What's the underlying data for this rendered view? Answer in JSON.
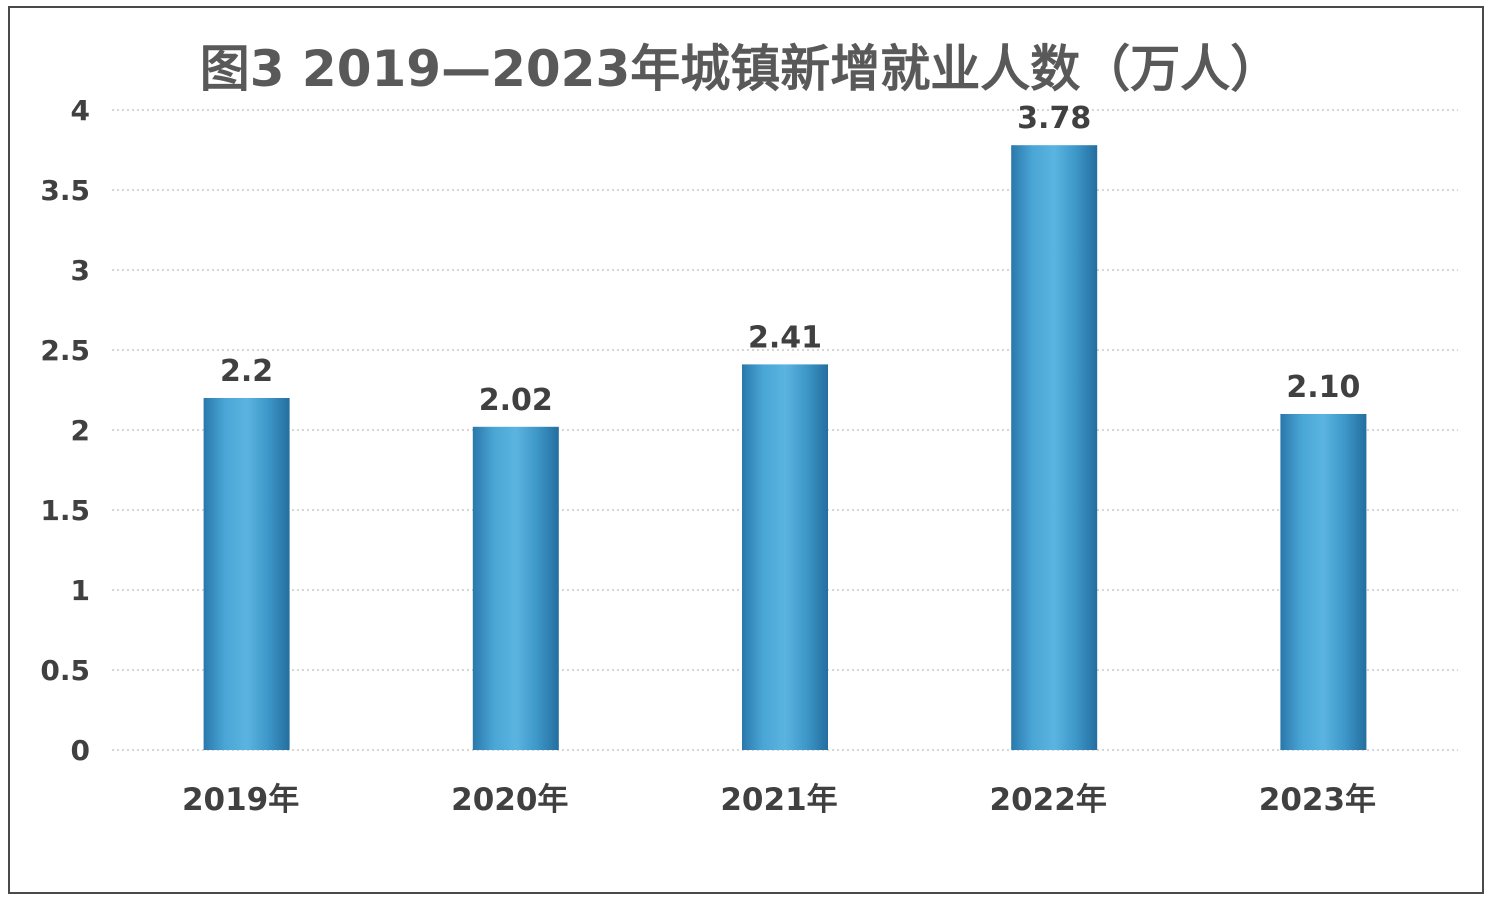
{
  "chart_data": {
    "type": "bar",
    "title": "图3 2019—2023年城镇新增就业人数（万人）",
    "categories": [
      "2019年",
      "2020年",
      "2021年",
      "2022年",
      "2023年"
    ],
    "values": [
      2.2,
      2.02,
      2.41,
      3.78,
      2.1
    ],
    "value_labels": [
      "2.2",
      "2.02",
      "2.41",
      "3.78",
      "2.10"
    ],
    "ylim": [
      0,
      4
    ],
    "yticks": [
      0,
      0.5,
      1,
      1.5,
      2,
      2.5,
      3,
      3.5,
      4
    ],
    "ytick_labels": [
      "0",
      "0.5",
      "1",
      "1.5",
      "2",
      "2.5",
      "3",
      "3.5",
      "4"
    ],
    "xlabel": "",
    "ylabel": "",
    "grid": true,
    "legend": "none",
    "bar_color": "#3a96c9"
  }
}
